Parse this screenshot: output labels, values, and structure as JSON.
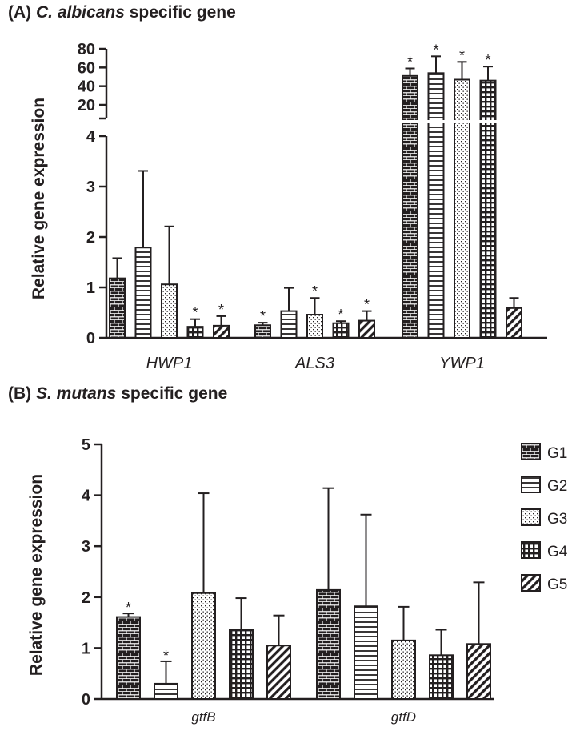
{
  "panel_a": {
    "prefix": "(A)",
    "species": "C. albicans",
    "suffix": "specific gene"
  },
  "panel_b": {
    "prefix": "(B)",
    "species": "S. mutans",
    "suffix": "specific gene"
  },
  "chart_data": [
    {
      "type": "bar",
      "title": "(A) C. albicans specific gene",
      "ylabel": "Relative gene expression",
      "xlabel": "",
      "categories": [
        "HWP1",
        "ALS3",
        "YWP1"
      ],
      "axis_break": {
        "lower_ylim": [
          0,
          4
        ],
        "upper_ylim": [
          20,
          80
        ]
      },
      "yticks_lower": [
        0,
        1,
        2,
        3,
        4
      ],
      "yticks_upper": [
        20,
        40,
        60,
        80
      ],
      "series": [
        {
          "name": "G1",
          "pattern": "brick",
          "values": [
            1.18,
            0.25,
            51
          ],
          "error": [
            0.4,
            0.05,
            8
          ],
          "significant": [
            false,
            true,
            true
          ]
        },
        {
          "name": "G2",
          "pattern": "horizontal",
          "values": [
            1.79,
            0.53,
            54
          ],
          "error": [
            1.52,
            0.46,
            18
          ],
          "significant": [
            false,
            false,
            true
          ]
        },
        {
          "name": "G3",
          "pattern": "dots",
          "values": [
            1.06,
            0.46,
            47
          ],
          "error": [
            1.15,
            0.33,
            19
          ],
          "significant": [
            false,
            true,
            true
          ]
        },
        {
          "name": "G4",
          "pattern": "grid",
          "values": [
            0.22,
            0.29,
            46
          ],
          "error": [
            0.15,
            0.04,
            15
          ],
          "significant": [
            true,
            true,
            true
          ]
        },
        {
          "name": "G5",
          "pattern": "diagonal",
          "values": [
            0.24,
            0.34,
            0.59
          ],
          "error": [
            0.19,
            0.19,
            0.2
          ],
          "significant": [
            true,
            true,
            false
          ]
        }
      ]
    },
    {
      "type": "bar",
      "title": "(B) S. mutans specific gene",
      "ylabel": "Relative gene expression",
      "xlabel": "",
      "categories": [
        "gtfB",
        "gtfD"
      ],
      "ylim": [
        0,
        5
      ],
      "yticks": [
        0,
        1,
        2,
        3,
        4,
        5
      ],
      "legend": "right",
      "series": [
        {
          "name": "G1",
          "pattern": "brick",
          "values": [
            1.61,
            2.14
          ],
          "error": [
            0.07,
            2.0
          ],
          "significant": [
            true,
            false
          ]
        },
        {
          "name": "G2",
          "pattern": "horizontal",
          "values": [
            0.3,
            1.82
          ],
          "error": [
            0.44,
            1.8
          ],
          "significant": [
            true,
            false
          ]
        },
        {
          "name": "G3",
          "pattern": "dots",
          "values": [
            2.08,
            1.15
          ],
          "error": [
            1.96,
            0.66
          ],
          "significant": [
            false,
            false
          ]
        },
        {
          "name": "G4",
          "pattern": "grid",
          "values": [
            1.36,
            0.86
          ],
          "error": [
            0.62,
            0.5
          ],
          "significant": [
            false,
            false
          ]
        },
        {
          "name": "G5",
          "pattern": "diagonal",
          "values": [
            1.05,
            1.08
          ],
          "error": [
            0.59,
            1.21
          ],
          "significant": [
            false,
            false
          ]
        }
      ]
    }
  ],
  "significance_marker": "*"
}
